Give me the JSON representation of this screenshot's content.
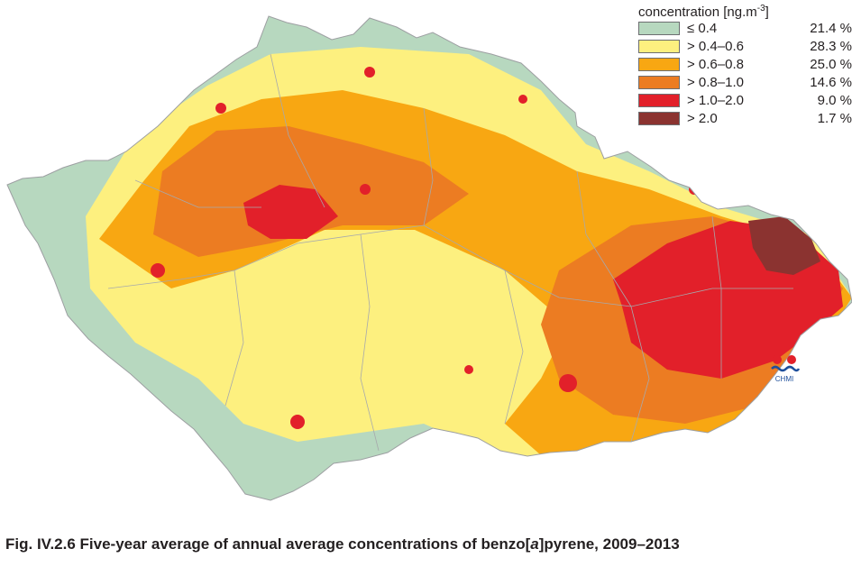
{
  "legend": {
    "title_prefix": "concentration [ng.m",
    "title_exponent": "-3",
    "title_suffix": "]",
    "classes": [
      {
        "label": "≤ 0.4",
        "percent": "21.4 %",
        "color": "#b7d8bf"
      },
      {
        "label": "> 0.4–0.6",
        "percent": "28.3 %",
        "color": "#fdf07f"
      },
      {
        "label": "> 0.6–0.8",
        "percent": "25.0 %",
        "color": "#f8a712"
      },
      {
        "label": "> 0.8–1.0",
        "percent": "14.6 %",
        "color": "#ec7c22"
      },
      {
        "label": "> 1.0–2.0",
        "percent": "9.0 %",
        "color": "#e2202a"
      },
      {
        "label": "> 2.0",
        "percent": "1.7 %",
        "color": "#8b3330"
      }
    ]
  },
  "logo": {
    "text": "CHMI"
  },
  "caption": {
    "prefix": "Fig. IV.2.6  Five-year average of annual average concentrations of benzo[",
    "italic": "a",
    "suffix": "]pyrene, 2009–2013"
  }
}
